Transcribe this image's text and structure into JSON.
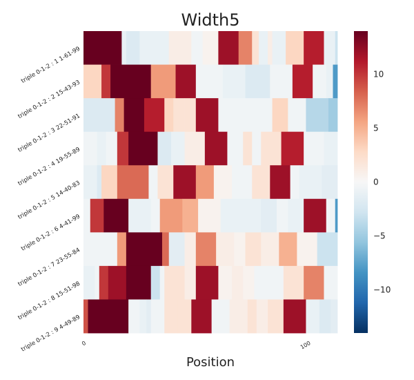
{
  "chart_data": {
    "type": "heatmap",
    "title": "Width5",
    "xlabel": "Position",
    "ylabel": "",
    "x_range": [
      0,
      113
    ],
    "x_ticks": [
      {
        "value": 0,
        "label": "0"
      },
      {
        "value": 100,
        "label": "100"
      }
    ],
    "rows": [
      "triple 0-1-2 : 1 1-61-99",
      "triple 0-1-2 : 2 15-43-93",
      "triple 0-1-2 : 3 22-51-91",
      "triple 0-1-2 : 4 19-55-89",
      "triple 0-1-2 : 5 14-40-83",
      "triple 0-1-2 : 6 4-41-99",
      "triple 0-1-2 : 7 23-55-84",
      "triple 0-1-2 : 8 15-51-98",
      "triple 0-1-2 : 9 4-49-89"
    ],
    "segments": [
      [
        [
          0,
          17,
          14
        ],
        [
          17,
          19,
          -1
        ],
        [
          19,
          25,
          -2
        ],
        [
          25,
          38,
          -1
        ],
        [
          38,
          48,
          1
        ],
        [
          48,
          53,
          -0.5
        ],
        [
          53,
          60,
          0.5
        ],
        [
          60,
          69,
          12
        ],
        [
          69,
          75,
          7
        ],
        [
          75,
          78,
          2
        ],
        [
          78,
          82,
          -1
        ],
        [
          82,
          84,
          1
        ],
        [
          84,
          90,
          -1
        ],
        [
          90,
          98,
          3
        ],
        [
          98,
          107,
          11
        ],
        [
          107,
          112,
          -1
        ],
        [
          112,
          113,
          -3
        ]
      ],
      [
        [
          0,
          8,
          3
        ],
        [
          8,
          12,
          10
        ],
        [
          12,
          30,
          14
        ],
        [
          30,
          41,
          6
        ],
        [
          41,
          50,
          12
        ],
        [
          50,
          62,
          -0.5
        ],
        [
          62,
          72,
          -1
        ],
        [
          72,
          83,
          -2
        ],
        [
          83,
          93,
          -0.5
        ],
        [
          93,
          102,
          11
        ],
        [
          102,
          108,
          -0.5
        ],
        [
          108,
          111,
          -1
        ],
        [
          111,
          113,
          -8
        ]
      ],
      [
        [
          0,
          14,
          -2
        ],
        [
          14,
          18,
          7
        ],
        [
          18,
          27,
          14
        ],
        [
          27,
          36,
          11
        ],
        [
          36,
          40,
          3
        ],
        [
          40,
          45,
          2
        ],
        [
          45,
          50,
          2
        ],
        [
          50,
          60,
          12
        ],
        [
          60,
          75,
          -0.5
        ],
        [
          75,
          84,
          -0.5
        ],
        [
          84,
          91,
          3
        ],
        [
          91,
          99,
          -0.5
        ],
        [
          99,
          109,
          -4
        ],
        [
          109,
          113,
          -5
        ]
      ],
      [
        [
          0,
          6,
          -0.5
        ],
        [
          6,
          10,
          -1
        ],
        [
          10,
          15,
          -0.5
        ],
        [
          15,
          20,
          10
        ],
        [
          20,
          33,
          14
        ],
        [
          33,
          39,
          -2
        ],
        [
          39,
          45,
          -1
        ],
        [
          45,
          54,
          1
        ],
        [
          54,
          64,
          12
        ],
        [
          64,
          71,
          -0.5
        ],
        [
          71,
          75,
          2
        ],
        [
          75,
          79,
          -0.5
        ],
        [
          79,
          88,
          2
        ],
        [
          88,
          98,
          11
        ],
        [
          98,
          107,
          -0.5
        ],
        [
          107,
          113,
          -1
        ]
      ],
      [
        [
          0,
          6,
          -1
        ],
        [
          6,
          8,
          -2
        ],
        [
          8,
          15,
          3
        ],
        [
          15,
          29,
          8
        ],
        [
          29,
          33,
          -0.5
        ],
        [
          33,
          40,
          2
        ],
        [
          40,
          50,
          12
        ],
        [
          50,
          58,
          6
        ],
        [
          58,
          66,
          0.5
        ],
        [
          66,
          70,
          -0.5
        ],
        [
          70,
          75,
          -0.5
        ],
        [
          75,
          83,
          2
        ],
        [
          83,
          92,
          12
        ],
        [
          92,
          96,
          -0.5
        ],
        [
          96,
          106,
          -1
        ],
        [
          106,
          113,
          -1.5
        ]
      ],
      [
        [
          0,
          3,
          -0.5
        ],
        [
          3,
          9,
          10
        ],
        [
          9,
          20,
          14
        ],
        [
          20,
          30,
          -1
        ],
        [
          30,
          34,
          -0.5
        ],
        [
          34,
          44,
          6
        ],
        [
          44,
          51,
          5
        ],
        [
          51,
          61,
          0.5
        ],
        [
          61,
          72,
          -1
        ],
        [
          72,
          79,
          -1
        ],
        [
          79,
          86,
          -1.5
        ],
        [
          86,
          91,
          -0.5
        ],
        [
          91,
          98,
          -1
        ],
        [
          98,
          108,
          12
        ],
        [
          108,
          112,
          -0.5
        ],
        [
          112,
          113,
          -8
        ]
      ],
      [
        [
          0,
          8,
          -0.5
        ],
        [
          8,
          15,
          -0.5
        ],
        [
          15,
          19,
          6
        ],
        [
          19,
          35,
          14
        ],
        [
          35,
          38,
          8
        ],
        [
          38,
          45,
          -1.5
        ],
        [
          45,
          50,
          1
        ],
        [
          50,
          59,
          7
        ],
        [
          59,
          67,
          1
        ],
        [
          67,
          72,
          0.5
        ],
        [
          72,
          79,
          2
        ],
        [
          79,
          87,
          1
        ],
        [
          87,
          95,
          5
        ],
        [
          95,
          104,
          0.5
        ],
        [
          104,
          113,
          -3
        ]
      ],
      [
        [
          0,
          5,
          -1
        ],
        [
          5,
          7,
          -0.5
        ],
        [
          7,
          11,
          10
        ],
        [
          11,
          19,
          12
        ],
        [
          19,
          30,
          14
        ],
        [
          30,
          34,
          -3
        ],
        [
          34,
          36,
          -0.5
        ],
        [
          36,
          45,
          2
        ],
        [
          45,
          50,
          1
        ],
        [
          50,
          60,
          12
        ],
        [
          60,
          66,
          0.5
        ],
        [
          66,
          71,
          1
        ],
        [
          71,
          76,
          0.5
        ],
        [
          76,
          89,
          -0.5
        ],
        [
          89,
          98,
          2
        ],
        [
          98,
          107,
          7
        ],
        [
          107,
          113,
          -0.5
        ]
      ],
      [
        [
          0,
          2,
          9
        ],
        [
          2,
          20,
          14
        ],
        [
          20,
          25,
          -0.5
        ],
        [
          25,
          28,
          -1
        ],
        [
          28,
          30,
          -1.5
        ],
        [
          30,
          36,
          -0.5
        ],
        [
          36,
          42,
          2
        ],
        [
          42,
          48,
          2
        ],
        [
          48,
          57,
          12
        ],
        [
          57,
          65,
          -0.5
        ],
        [
          65,
          73,
          1
        ],
        [
          73,
          77,
          2
        ],
        [
          77,
          82,
          1
        ],
        [
          82,
          89,
          2
        ],
        [
          89,
          99,
          12
        ],
        [
          99,
          105,
          -1
        ],
        [
          105,
          110,
          -2
        ],
        [
          110,
          113,
          -1.5
        ]
      ]
    ],
    "colorbar": {
      "range": [
        -14,
        14
      ],
      "ticks": [
        {
          "value": -10,
          "label": "−10"
        },
        {
          "value": -5,
          "label": "−5"
        },
        {
          "value": 0,
          "label": "0"
        },
        {
          "value": 5,
          "label": "5"
        },
        {
          "value": 10,
          "label": "10"
        }
      ],
      "colormap": "RdBu_r"
    }
  }
}
